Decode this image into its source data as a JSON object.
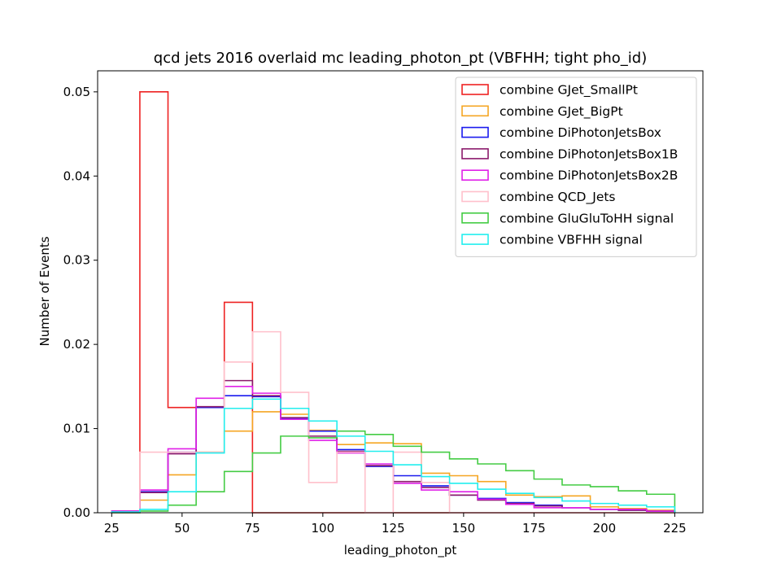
{
  "chart_data": {
    "type": "step-histogram",
    "title": "qcd jets 2016 overlaid mc leading_photon_pt (VBFHH; tight pho_id)",
    "xlabel": "leading_photon_pt",
    "ylabel": "Number of Events",
    "xlim": [
      20,
      235
    ],
    "ylim": [
      0,
      0.0525
    ],
    "xticks": [
      25,
      50,
      75,
      100,
      125,
      150,
      175,
      200,
      225
    ],
    "xtick_labels": [
      "25",
      "50",
      "75",
      "100",
      "125",
      "150",
      "175",
      "200",
      "225"
    ],
    "yticks": [
      0,
      0.01,
      0.02,
      0.03,
      0.04,
      0.05
    ],
    "ytick_labels": [
      "0.00",
      "0.01",
      "0.02",
      "0.03",
      "0.04",
      "0.05"
    ],
    "grid": false,
    "legend_position": "top-right",
    "bin_edges": [
      25,
      35,
      45,
      55,
      65,
      75,
      85,
      95,
      105,
      115,
      125,
      135,
      145,
      155,
      165,
      175,
      185,
      195,
      205,
      215,
      225
    ],
    "series": [
      {
        "name": "combine GJet_SmallPt",
        "color": "#ee2222",
        "values": [
          0,
          0.05,
          0.0125,
          0.0125,
          0.025,
          0,
          0,
          0,
          0,
          0,
          0,
          0,
          0,
          0,
          0,
          0,
          0,
          0,
          0,
          0
        ]
      },
      {
        "name": "combine GJet_BigPt",
        "color": "#f5a623",
        "values": [
          0.0001,
          0.0015,
          0.0045,
          0.0072,
          0.0097,
          0.012,
          0.0117,
          0.0098,
          0.0081,
          0.0083,
          0.0082,
          0.0047,
          0.0044,
          0.0037,
          0.0021,
          0.0019,
          0.002,
          0.0007,
          0.0005,
          0.0003
        ]
      },
      {
        "name": "combine DiPhotonJetsBox",
        "color": "#1a1aee",
        "values": [
          0.0002,
          0.0025,
          0.0072,
          0.0125,
          0.0139,
          0.0138,
          0.0112,
          0.0097,
          0.0075,
          0.0055,
          0.0044,
          0.0032,
          0.0021,
          0.0017,
          0.0012,
          0.0009,
          0.0006,
          0.0004,
          0.0003,
          0.0002
        ]
      },
      {
        "name": "combine DiPhotonJetsBox1B",
        "color": "#8b1a6b",
        "values": [
          0.0002,
          0.0024,
          0.007,
          0.0126,
          0.0157,
          0.0139,
          0.0113,
          0.0091,
          0.0073,
          0.0056,
          0.0037,
          0.003,
          0.0021,
          0.0015,
          0.0011,
          0.0008,
          0.0006,
          0.0004,
          0.0003,
          0.0002
        ]
      },
      {
        "name": "combine DiPhotonJetsBox2B",
        "color": "#e020e8",
        "values": [
          0.0002,
          0.0027,
          0.0076,
          0.0136,
          0.015,
          0.0142,
          0.0111,
          0.0086,
          0.0071,
          0.0058,
          0.0035,
          0.0027,
          0.0025,
          0.0016,
          0.001,
          0.0006,
          0.0006,
          0.0004,
          0.0004,
          0.0002
        ]
      },
      {
        "name": "combine QCD_Jets",
        "color": "#ffc0cb",
        "values": [
          0,
          0.0072,
          0.0072,
          0.0072,
          0.0179,
          0.0215,
          0.0143,
          0.0036,
          0.0072,
          0,
          0.0072,
          0.0036,
          0,
          0,
          0,
          0,
          0,
          0,
          0,
          0
        ]
      },
      {
        "name": "combine GluGluToHH signal",
        "color": "#44cc44",
        "values": [
          0,
          0.0002,
          0.0009,
          0.0025,
          0.0049,
          0.0071,
          0.0091,
          0.0089,
          0.0097,
          0.0093,
          0.0079,
          0.0072,
          0.0064,
          0.0058,
          0.005,
          0.004,
          0.0033,
          0.0031,
          0.0026,
          0.0022
        ]
      },
      {
        "name": "combine VBFHH signal",
        "color": "#22eeee",
        "values": [
          0.0001,
          0.0004,
          0.0025,
          0.0071,
          0.0124,
          0.0135,
          0.0124,
          0.0109,
          0.0091,
          0.0073,
          0.0057,
          0.0043,
          0.0035,
          0.0028,
          0.0023,
          0.0018,
          0.0014,
          0.0011,
          0.0009,
          0.0007
        ]
      }
    ]
  }
}
